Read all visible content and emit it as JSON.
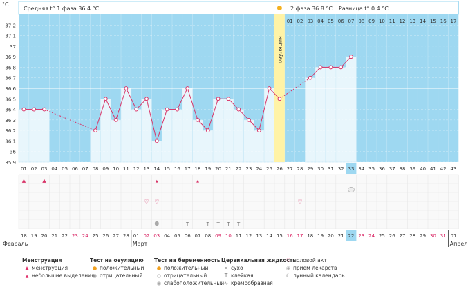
{
  "header": {
    "unit_label": "°C",
    "phase1_text": "Средняя t° 1 фаза 36.4 °C",
    "phase2_text": "2 фаза 36.8 °C",
    "diff_text": "Разница t° 0.4 °C",
    "ovulation_label": "овуляция"
  },
  "chart_data": {
    "type": "line",
    "title": "",
    "ylim": [
      35.9,
      37.3
    ],
    "yticks": [
      35.9,
      36,
      36.1,
      36.2,
      36.3,
      36.4,
      36.5,
      36.6,
      36.7,
      36.8,
      36.9,
      37,
      37.1,
      37.2
    ],
    "cycle_days": [
      "01",
      "02",
      "03",
      "04",
      "05",
      "06",
      "07",
      "08",
      "09",
      "10",
      "11",
      "12",
      "13",
      "14",
      "15",
      "16",
      "17",
      "18",
      "19",
      "20",
      "21",
      "22",
      "23",
      "24",
      "25",
      "26",
      "27",
      "28",
      "29",
      "30",
      "31",
      "32",
      "33",
      "34",
      "35",
      "36",
      "37",
      "38",
      "39",
      "40",
      "41",
      "42",
      "43"
    ],
    "phase2_days": [
      "01",
      "02",
      "03",
      "04",
      "05",
      "06",
      "07",
      "08",
      "09",
      "10",
      "11",
      "12",
      "13",
      "14",
      "15",
      "16",
      "17"
    ],
    "calendar_dates": [
      "18",
      "19",
      "20",
      "21",
      "22",
      "23",
      "24",
      "25",
      "26",
      "27",
      "28",
      "01",
      "02",
      "03",
      "04",
      "05",
      "06",
      "07",
      "08",
      "09",
      "10",
      "11",
      "12",
      "13",
      "14",
      "15",
      "16",
      "17",
      "18",
      "19",
      "20",
      "21",
      "22",
      "23",
      "24",
      "25",
      "26",
      "27",
      "28",
      "29",
      "30",
      "31",
      "01"
    ],
    "calendar_weekend_idx": [
      5,
      6,
      12,
      13,
      19,
      20,
      26,
      27,
      33,
      34,
      40,
      41
    ],
    "months": [
      "Февраль",
      "Март",
      "Апрель"
    ],
    "temperatures": [
      36.4,
      36.4,
      36.4,
      null,
      null,
      null,
      null,
      36.2,
      36.5,
      36.3,
      36.6,
      36.4,
      36.5,
      36.1,
      36.4,
      36.4,
      36.6,
      36.3,
      36.2,
      36.5,
      36.5,
      36.4,
      36.3,
      36.2,
      36.6,
      36.5,
      null,
      null,
      36.7,
      36.8,
      36.8,
      36.8,
      36.9,
      null,
      null,
      null,
      null,
      null,
      null,
      null,
      null,
      null,
      null
    ],
    "ovulation_day_index": 25,
    "today_index": 32,
    "coverline": 36.6,
    "grid": true
  },
  "colors": {
    "chart_bg": "#9ed8f1",
    "bar_fill": "#e8f6fc",
    "line": "#d83367",
    "ovulation": "#fff3a6",
    "today": "#9ed8f1"
  },
  "legend": {
    "menstruation": {
      "title": "Менструация",
      "items": [
        "менструация",
        "небольшие выделения"
      ]
    },
    "ovulation_test": {
      "title": "Тест на овуляцию",
      "items": [
        "положительный",
        "отрицательный"
      ]
    },
    "pregnancy_test": {
      "title": "Тест на беременность",
      "items": [
        "положительный",
        "отрицательный",
        "слабоположительный"
      ]
    },
    "cervical": {
      "title": "Цервикальная жидкость",
      "items": [
        "сухо",
        "клейкая",
        "кремообразная"
      ]
    },
    "other": {
      "items": [
        "половой акт",
        "прием лекарств",
        "лунный календарь"
      ]
    }
  }
}
